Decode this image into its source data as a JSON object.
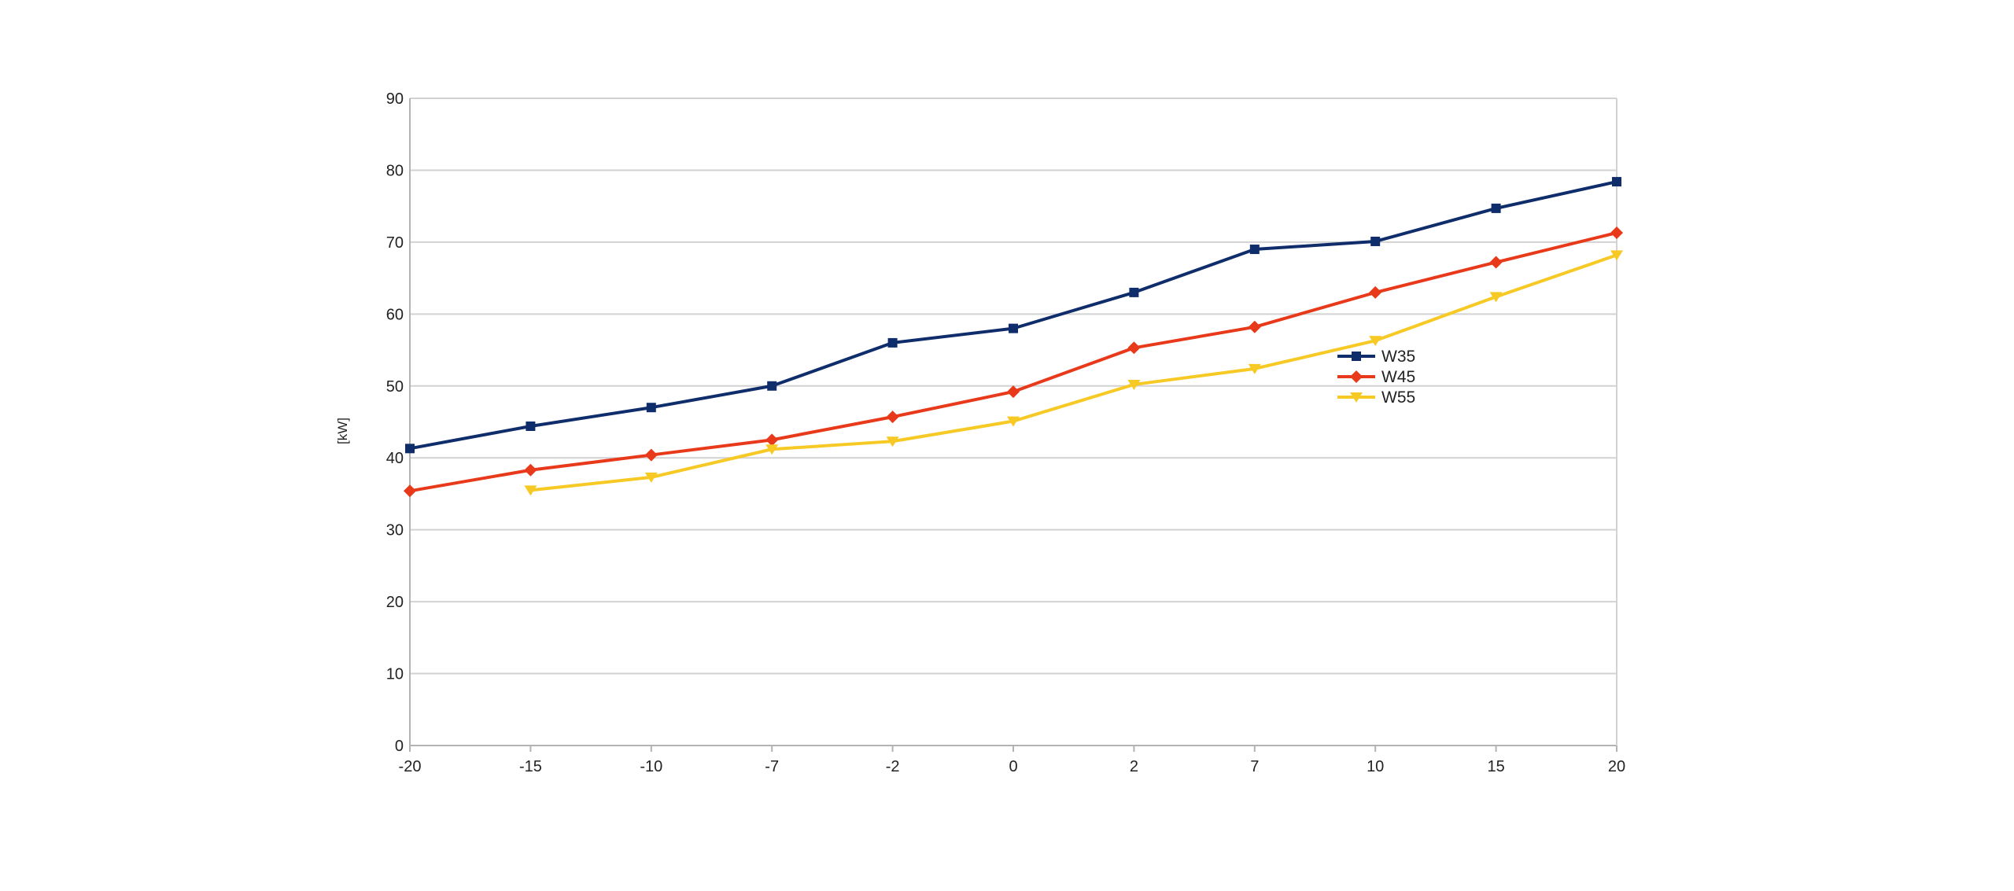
{
  "chart_data": {
    "type": "line",
    "categories": [
      "-20",
      "-15",
      "-10",
      "-7",
      "-2",
      "0",
      "2",
      "7",
      "10",
      "15",
      "20"
    ],
    "ylabel": "[kW]",
    "xlabel": "",
    "ylim": [
      0,
      90
    ],
    "yticks": [
      0,
      10,
      20,
      30,
      40,
      50,
      60,
      70,
      80,
      90
    ],
    "grid": true,
    "legend_position": "right",
    "series": [
      {
        "name": "W35",
        "color": "#0f2d6b",
        "marker": "square",
        "values": [
          41.3,
          44.4,
          47,
          50,
          56,
          58,
          63,
          69,
          70.1,
          74.7,
          78.4
        ]
      },
      {
        "name": "W45",
        "color": "#e8391a",
        "marker": "diamond",
        "values": [
          35.4,
          38.3,
          40.4,
          42.5,
          45.7,
          49.2,
          55.3,
          58.2,
          63,
          67.2,
          71.3
        ]
      },
      {
        "name": "W55",
        "color": "#f7c924",
        "marker": "triangle-down",
        "values": [
          null,
          35.5,
          37.3,
          41.2,
          42.3,
          45.1,
          50.2,
          52.4,
          56.3,
          62.4,
          68.2
        ]
      }
    ]
  }
}
